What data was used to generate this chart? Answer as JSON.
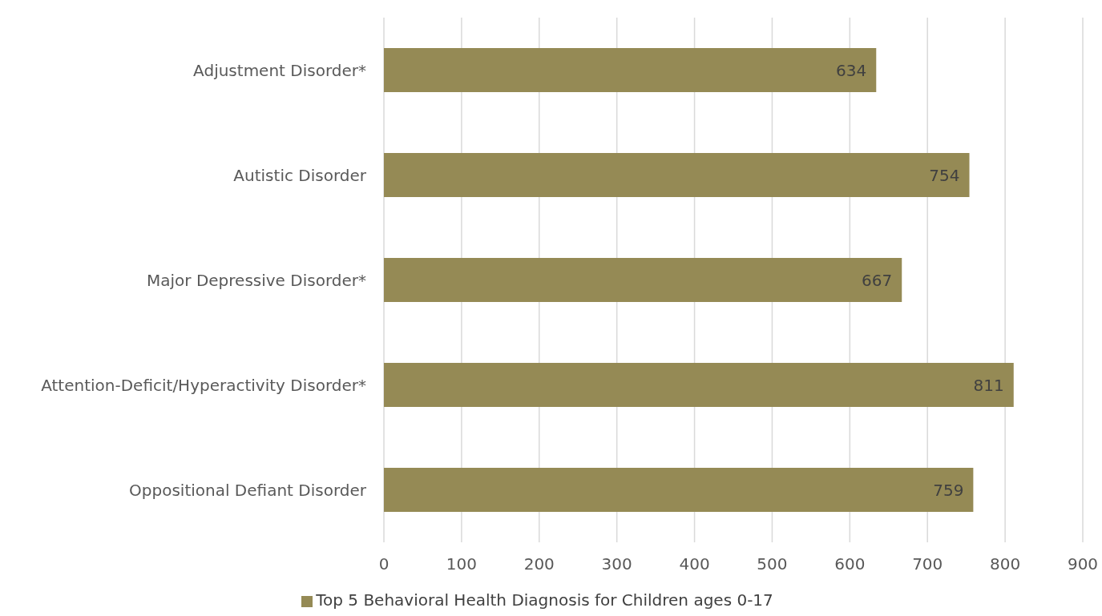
{
  "chart_data": {
    "type": "bar",
    "orientation": "horizontal",
    "categories": [
      "Adjustment Disorder*",
      "Autistic Disorder",
      "Major Depressive Disorder*",
      "Attention-Deficit/Hyperactivity Disorder*",
      "Oppositional Defiant Disorder"
    ],
    "series": [
      {
        "name": "Top 5 Behavioral Health Diagnosis for Children ages 0-17",
        "color": "#958a55",
        "values": [
          634,
          754,
          667,
          811,
          759
        ]
      }
    ],
    "xlim": [
      0,
      900
    ],
    "xticks": [
      0,
      100,
      200,
      300,
      400,
      500,
      600,
      700,
      800,
      900
    ],
    "grid": "x",
    "legend": "bottom",
    "data_labels": true
  }
}
